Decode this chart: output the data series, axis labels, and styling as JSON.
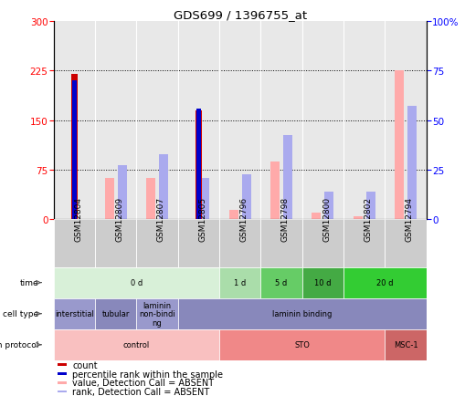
{
  "title": "GDS699 / 1396755_at",
  "samples": [
    "GSM12804",
    "GSM12809",
    "GSM12807",
    "GSM12805",
    "GSM12796",
    "GSM12798",
    "GSM12800",
    "GSM12802",
    "GSM12794"
  ],
  "count_values": [
    220,
    0,
    0,
    165,
    0,
    0,
    0,
    0,
    0
  ],
  "percentile_rank_values": [
    210,
    0,
    0,
    168,
    0,
    0,
    0,
    0,
    0
  ],
  "value_absent": [
    0,
    63,
    63,
    0,
    14,
    88,
    10,
    5,
    225
  ],
  "rank_absent": [
    0,
    82,
    98,
    63,
    68,
    128,
    42,
    42,
    172
  ],
  "ylim_left": [
    0,
    300
  ],
  "ylim_right": [
    0,
    100
  ],
  "yticks_left": [
    0,
    75,
    150,
    225,
    300
  ],
  "yticks_right": [
    0,
    25,
    50,
    75,
    100
  ],
  "time_groups": [
    {
      "label": "0 d",
      "start": 0,
      "end": 4,
      "color": "#d8f0d8"
    },
    {
      "label": "1 d",
      "start": 4,
      "end": 5,
      "color": "#aaddaa"
    },
    {
      "label": "5 d",
      "start": 5,
      "end": 6,
      "color": "#66cc66"
    },
    {
      "label": "10 d",
      "start": 6,
      "end": 7,
      "color": "#44aa44"
    },
    {
      "label": "20 d",
      "start": 7,
      "end": 9,
      "color": "#33cc33"
    }
  ],
  "cell_type_groups": [
    {
      "label": "interstitial",
      "start": 0,
      "end": 1,
      "color": "#9999cc"
    },
    {
      "label": "tubular",
      "start": 1,
      "end": 2,
      "color": "#8888bb"
    },
    {
      "label": "laminin\nnon-bindi\nng",
      "start": 2,
      "end": 3,
      "color": "#9999cc"
    },
    {
      "label": "laminin binding",
      "start": 3,
      "end": 9,
      "color": "#8888bb"
    }
  ],
  "growth_protocol_groups": [
    {
      "label": "control",
      "start": 0,
      "end": 4,
      "color": "#f9c0c0"
    },
    {
      "label": "STO",
      "start": 4,
      "end": 8,
      "color": "#f08888"
    },
    {
      "label": "MSC-1",
      "start": 8,
      "end": 9,
      "color": "#cc6666"
    }
  ],
  "legend_items": [
    {
      "color": "#cc0000",
      "label": "count"
    },
    {
      "color": "#0000cc",
      "label": "percentile rank within the sample"
    },
    {
      "color": "#ffaaaa",
      "label": "value, Detection Call = ABSENT"
    },
    {
      "color": "#aaaaee",
      "label": "rank, Detection Call = ABSENT"
    }
  ],
  "row_labels": [
    "time",
    "cell type",
    "growth protocol"
  ],
  "bg_color": "#ffffff",
  "plot_bg": "#e8e8e8",
  "sample_box_color": "#cccccc"
}
